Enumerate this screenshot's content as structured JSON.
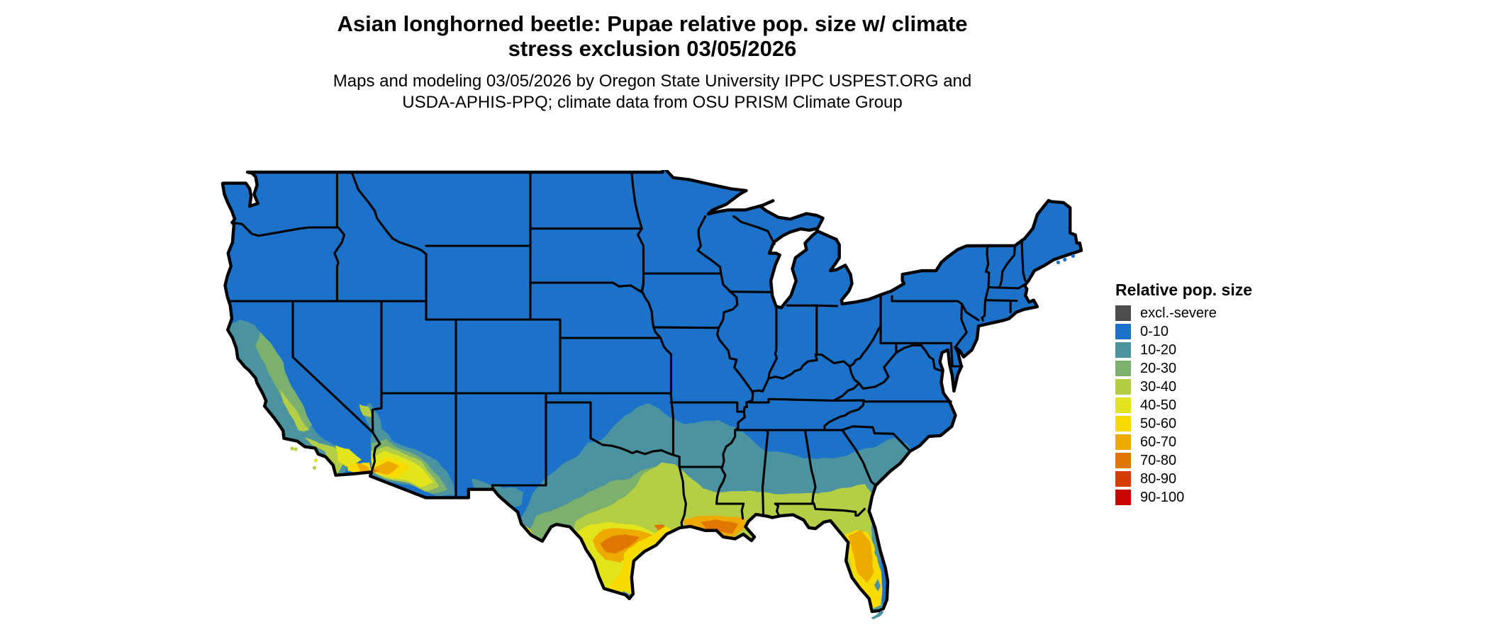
{
  "title": {
    "line1": "Asian longhorned beetle: Pupae relative pop. size w/ climate",
    "line2": "stress exclusion 03/05/2026"
  },
  "subtitle": {
    "line1": "Maps and modeling 03/05/2026 by Oregon State University IPPC USPEST.ORG and",
    "line2": "USDA-APHIS-PPQ; climate data from OSU PRISM Climate Group"
  },
  "legend": {
    "title": "Relative pop. size",
    "entries": [
      {
        "label": "excl.-severe",
        "color": "#4d4d4d"
      },
      {
        "label": "0-10",
        "color": "#1c72c8"
      },
      {
        "label": "10-20",
        "color": "#4b93a0"
      },
      {
        "label": "20-30",
        "color": "#7cb06e"
      },
      {
        "label": "30-40",
        "color": "#b4ce44"
      },
      {
        "label": "40-50",
        "color": "#e2e41f"
      },
      {
        "label": "50-60",
        "color": "#f8db00"
      },
      {
        "label": "60-70",
        "color": "#eeaa00"
      },
      {
        "label": "70-80",
        "color": "#e07700"
      },
      {
        "label": "80-90",
        "color": "#d43c00"
      },
      {
        "label": "90-100",
        "color": "#c90700"
      }
    ]
  },
  "map": {
    "background_color": "#ffffff",
    "border_color": "#000000",
    "base_category": "0-10"
  },
  "chart_data": {
    "type": "choropleth_map",
    "region": "Contiguous United States with state borders",
    "title": "Asian longhorned beetle: Pupae relative pop. size w/ climate stress exclusion 03/05/2026",
    "legend_title": "Relative pop. size",
    "categories": [
      "excl.-severe",
      "0-10",
      "10-20",
      "20-30",
      "30-40",
      "40-50",
      "50-60",
      "60-70",
      "70-80",
      "80-90",
      "90-100"
    ],
    "colors": [
      "#4d4d4d",
      "#1c72c8",
      "#4b93a0",
      "#7cb06e",
      "#b4ce44",
      "#e2e41f",
      "#f8db00",
      "#eeaa00",
      "#e07700",
      "#d43c00",
      "#c90700"
    ],
    "observed_pattern": {
      "0-10": "dominant: entire northern, central and eastern US down to roughly Tennessee / North Carolina",
      "10-20": "band across Oklahoma, Arkansas, Mississippi, Alabama, Georgia, coastal South Carolina; California coast/valley; southern Arizona foothills; west Texas",
      "20-30": "central Texas mottling, Sierra foothills, southern Arizona ring",
      "30-40": "Gulf coast states strip, north Florida, east-central Texas, south Nevada tip, southern California, Arizona basin edge",
      "40-50": "south Texas, Phoenix-Tucson basin, SoCal deserts",
      "50-60": "lower Texas coast and Rio Grande valley, south Florida, Yuma/Imperial valley fringe",
      "60-70": "central Florida core, south Louisiana, south-central Texas, Phoenix/Yuma core",
      "70-80": "small cores in south Texas, Louisiana delta, Yuma",
      "80-90": "not visibly present on map",
      "90-100": "not visibly present on map"
    }
  }
}
